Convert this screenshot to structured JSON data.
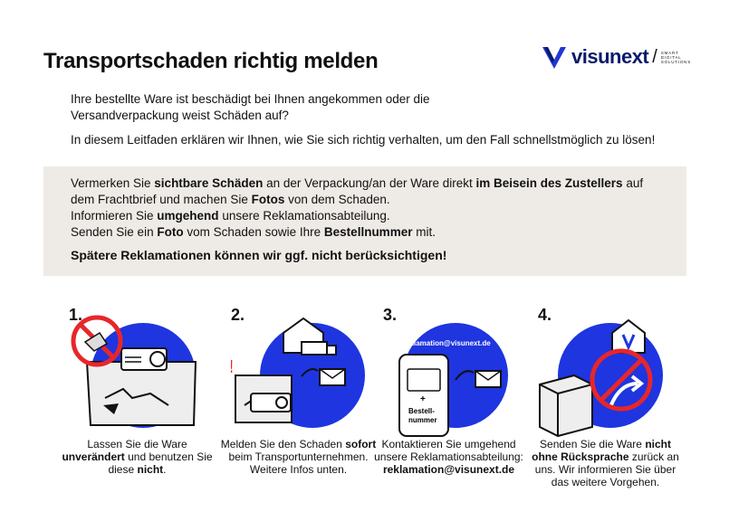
{
  "title": "Transportschaden richtig melden",
  "logo": {
    "word": "visunext",
    "tagline": "SMART DIGITAL SOLUTIONS",
    "color": "#0a1a6b"
  },
  "intro": {
    "line1": "Ihre bestellte Ware ist beschädigt bei Ihnen angekommen oder die",
    "line2": "Versandverpackung weist Schäden auf?",
    "line3": "In diesem Leitfaden erklären wir Ihnen, wie Sie sich richtig verhalten, um den Fall schnellstmöglich zu lösen!"
  },
  "box": {
    "p1_a": "Vermerken Sie ",
    "p1_b": "sichtbare Schäden",
    "p1_c": " an der Verpackung/an der Ware direkt ",
    "p1_d": "im Beisein des Zustellers",
    "p1_e": " auf dem Frachtbrief und machen Sie ",
    "p1_f": "Fotos",
    "p1_g": " von dem Schaden.",
    "p2_a": "Informieren Sie ",
    "p2_b": "umgehend",
    "p2_c": " unsere Reklamationsabteilung.",
    "p3_a": "Senden Sie ein ",
    "p3_b": "Foto",
    "p3_c": " vom Schaden sowie Ihre ",
    "p3_d": "Bestellnummer",
    "p3_e": " mit.",
    "warning": "Spätere Reklamationen können wir ggf. nicht berücksichtigen!",
    "bg": "#eeebe6"
  },
  "steps": [
    {
      "num": "1.",
      "c1": "Lassen Sie die Ware ",
      "c2": "unverändert",
      "c3": " und benutzen Sie diese ",
      "c4": "nicht",
      "c5": "."
    },
    {
      "num": "2.",
      "c1": "Melden Sie den Schaden ",
      "c2": "sofort",
      "c3": " beim Transportunternehmen. Weitere Infos unten.",
      "c4": "",
      "c5": ""
    },
    {
      "num": "3.",
      "c1": "Kontaktieren Sie umgehend unsere Reklamationsabteilung: ",
      "c2": "reklamation@visunext.de",
      "c3": "",
      "c4": "",
      "c5": "",
      "email": "reklamation@visunext.de",
      "phone_plus": "+",
      "phone_label1": "Bestell-",
      "phone_label2": "nummer"
    },
    {
      "num": "4.",
      "c1": "Senden Sie die Ware ",
      "c2": "nicht ohne Rücksprache",
      "c3": " zurück an uns. Wir informieren Sie über das weitere Vorgehen.",
      "c4": "",
      "c5": ""
    }
  ],
  "step2_exclaim": "!!",
  "colors": {
    "blue": "#1e35e0",
    "red": "#e8262a",
    "dark": "#111111"
  }
}
